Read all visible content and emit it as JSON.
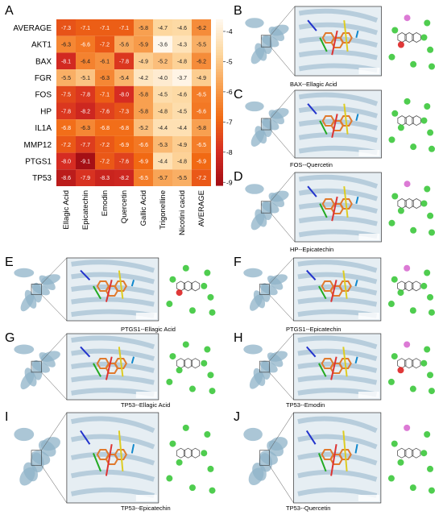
{
  "panel_letters": [
    "A",
    "B",
    "C",
    "D",
    "E",
    "F",
    "G",
    "H",
    "I",
    "J"
  ],
  "chart_data": {
    "type": "heatmap",
    "rows": [
      "AVERAGE",
      "AKT1",
      "BAX",
      "FGR",
      "FOS",
      "HP",
      "IL1A",
      "MMP12",
      "PTGS1",
      "TP53"
    ],
    "columns": [
      "Ellagic Acid",
      "Epicatechin",
      "Emodin",
      "Quercetin",
      "Gallic Acid",
      "Trigonelline",
      "Nicotini cacid",
      "AVERAGE"
    ],
    "values": [
      [
        -7.3,
        -7.1,
        -7.1,
        -7.1,
        -5.8,
        -4.7,
        -4.6,
        -6.2
      ],
      [
        -6.3,
        -6.6,
        -7.2,
        -5.6,
        -5.9,
        -3.6,
        -4.3,
        -5.5
      ],
      [
        -8.1,
        -6.4,
        -6.1,
        -7.8,
        -4.9,
        -5.2,
        -4.8,
        -6.2
      ],
      [
        -5.5,
        -5.1,
        -6.3,
        -5.4,
        -4.2,
        -4.0,
        -3.7,
        -4.9
      ],
      [
        -7.5,
        -7.8,
        -7.1,
        -8.0,
        -5.8,
        -4.5,
        -4.6,
        -6.5
      ],
      [
        -7.8,
        -8.2,
        -7.6,
        -7.3,
        -5.8,
        -4.8,
        -4.5,
        -6.6
      ],
      [
        -6.8,
        -6.3,
        -6.8,
        -6.8,
        -5.2,
        -4.4,
        -4.4,
        -5.8
      ],
      [
        -7.2,
        -7.7,
        -7.2,
        -6.9,
        -6.6,
        -5.3,
        -4.9,
        -6.5
      ],
      [
        -8.0,
        -9.1,
        -7.2,
        -7.6,
        -6.9,
        -4.4,
        -4.8,
        -6.9
      ],
      [
        -8.6,
        -7.9,
        -8.3,
        -8.2,
        -6.5,
        -5.7,
        -5.5,
        -7.2
      ]
    ],
    "colorbar": {
      "ticks": [
        -4,
        -5,
        -6,
        -7,
        -8,
        -9
      ],
      "range": [
        -9.1,
        -3.6
      ],
      "low_color": "#a50f15",
      "high_color": "#fff7ec"
    }
  },
  "captions": {
    "B": "BAX--Ellagic Acid",
    "C": "FOS--Quercetin",
    "D": "HP--Epicatechin",
    "E": "PTGS1--Ellagic Acid",
    "F": "PTGS1--Epicatechin",
    "G": "TP53--Ellagic Acid",
    "H": "TP53--Emodin",
    "I": "TP53--Epicatechin",
    "J": "TP53--Quercetin"
  },
  "colors": {
    "protein": "#8fb3c8",
    "protein_dark": "#5f8aa3",
    "ligand": "#e07a2e",
    "residue_green": "#3cc83c",
    "residue_pink": "#d86bd0",
    "residue_red": "#dd2222"
  }
}
